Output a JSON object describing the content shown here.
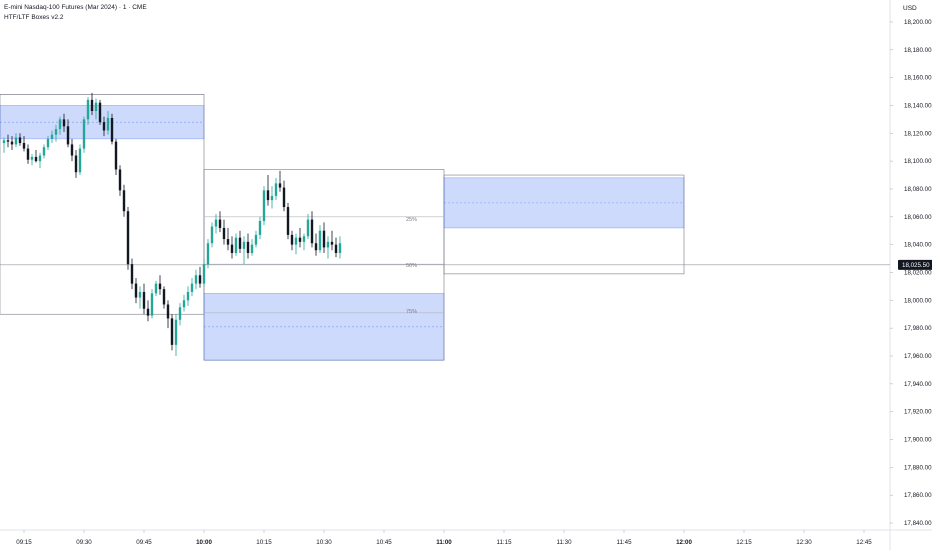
{
  "header": {
    "symbol_title": "E-mini Nasdaq-100 Futures (Mar 2024) · 1 · CME",
    "indicator_name": "HTF/LTF Boxes v2.2"
  },
  "price_axis": {
    "currency": "USD",
    "ticks": [
      "18,200.00",
      "18,180.00",
      "18,160.00",
      "18,140.00",
      "18,120.00",
      "18,100.00",
      "18,080.00",
      "18,060.00",
      "18,040.00",
      "18,020.00",
      "18,000.00",
      "17,980.00",
      "17,960.00",
      "17,940.00",
      "17,920.00",
      "17,900.00",
      "17,880.00",
      "17,860.00",
      "17,840.00"
    ],
    "last_price": "18,025.50"
  },
  "time_axis": {
    "ticks": [
      {
        "label": "09:15",
        "bold": false
      },
      {
        "label": "09:30",
        "bold": false
      },
      {
        "label": "09:45",
        "bold": false
      },
      {
        "label": "10:00",
        "bold": true
      },
      {
        "label": "10:15",
        "bold": false
      },
      {
        "label": "10:30",
        "bold": false
      },
      {
        "label": "10:45",
        "bold": false
      },
      {
        "label": "11:00",
        "bold": true
      },
      {
        "label": "11:15",
        "bold": false
      },
      {
        "label": "11:30",
        "bold": false
      },
      {
        "label": "11:45",
        "bold": false
      },
      {
        "label": "12:00",
        "bold": true
      },
      {
        "label": "12:15",
        "bold": false
      },
      {
        "label": "12:30",
        "bold": false
      },
      {
        "label": "12:45",
        "bold": false
      }
    ]
  },
  "box_labels": {
    "q25": "25%",
    "q50": "50%",
    "q75": "75%"
  },
  "colors": {
    "up": "#26a69a",
    "down": "#131722",
    "box_fill": "#3d6cf5",
    "box_border": "#787b86",
    "axis_text": "#131722"
  },
  "chart_data": {
    "type": "candlestick",
    "instrument": "E-mini Nasdaq-100 Futures (Mar 2024)",
    "interval": "1",
    "ylim": [
      17835,
      18210
    ],
    "x_range": [
      "09:09",
      "12:51"
    ],
    "last_price": 18025.5,
    "candles": [
      {
        "t": "09:10",
        "o": 18113,
        "h": 18117,
        "l": 18106,
        "c": 18115
      },
      {
        "t": "09:11",
        "o": 18115,
        "h": 18119,
        "l": 18110,
        "c": 18114
      },
      {
        "t": "09:12",
        "o": 18114,
        "h": 18118,
        "l": 18108,
        "c": 18112
      },
      {
        "t": "09:13",
        "o": 18112,
        "h": 18120,
        "l": 18110,
        "c": 18117
      },
      {
        "t": "09:14",
        "o": 18117,
        "h": 18120,
        "l": 18111,
        "c": 18113
      },
      {
        "t": "09:15",
        "o": 18113,
        "h": 18118,
        "l": 18107,
        "c": 18109
      },
      {
        "t": "09:16",
        "o": 18109,
        "h": 18112,
        "l": 18098,
        "c": 18101
      },
      {
        "t": "09:17",
        "o": 18101,
        "h": 18105,
        "l": 18097,
        "c": 18103
      },
      {
        "t": "09:18",
        "o": 18103,
        "h": 18108,
        "l": 18099,
        "c": 18100
      },
      {
        "t": "09:19",
        "o": 18100,
        "h": 18106,
        "l": 18095,
        "c": 18104
      },
      {
        "t": "09:20",
        "o": 18104,
        "h": 18112,
        "l": 18102,
        "c": 18110
      },
      {
        "t": "09:21",
        "o": 18110,
        "h": 18118,
        "l": 18108,
        "c": 18116
      },
      {
        "t": "09:22",
        "o": 18116,
        "h": 18122,
        "l": 18113,
        "c": 18119
      },
      {
        "t": "09:23",
        "o": 18119,
        "h": 18126,
        "l": 18114,
        "c": 18123
      },
      {
        "t": "09:24",
        "o": 18123,
        "h": 18132,
        "l": 18119,
        "c": 18130
      },
      {
        "t": "09:25",
        "o": 18130,
        "h": 18134,
        "l": 18121,
        "c": 18125
      },
      {
        "t": "09:26",
        "o": 18125,
        "h": 18130,
        "l": 18110,
        "c": 18112
      },
      {
        "t": "09:27",
        "o": 18112,
        "h": 18116,
        "l": 18100,
        "c": 18104
      },
      {
        "t": "09:28",
        "o": 18104,
        "h": 18108,
        "l": 18088,
        "c": 18092
      },
      {
        "t": "09:29",
        "o": 18092,
        "h": 18112,
        "l": 18090,
        "c": 18109
      },
      {
        "t": "09:30",
        "o": 18109,
        "h": 18132,
        "l": 18106,
        "c": 18130
      },
      {
        "t": "09:31",
        "o": 18130,
        "h": 18146,
        "l": 18126,
        "c": 18144
      },
      {
        "t": "09:32",
        "o": 18144,
        "h": 18149,
        "l": 18133,
        "c": 18136
      },
      {
        "t": "09:33",
        "o": 18136,
        "h": 18145,
        "l": 18130,
        "c": 18142
      },
      {
        "t": "09:34",
        "o": 18142,
        "h": 18144,
        "l": 18126,
        "c": 18128
      },
      {
        "t": "09:35",
        "o": 18128,
        "h": 18132,
        "l": 18118,
        "c": 18122
      },
      {
        "t": "09:36",
        "o": 18122,
        "h": 18136,
        "l": 18119,
        "c": 18131
      },
      {
        "t": "09:37",
        "o": 18131,
        "h": 18134,
        "l": 18112,
        "c": 18114
      },
      {
        "t": "09:38",
        "o": 18114,
        "h": 18116,
        "l": 18090,
        "c": 18094
      },
      {
        "t": "09:39",
        "o": 18094,
        "h": 18097,
        "l": 18075,
        "c": 18079
      },
      {
        "t": "09:40",
        "o": 18079,
        "h": 18083,
        "l": 18060,
        "c": 18064
      },
      {
        "t": "09:41",
        "o": 18064,
        "h": 18067,
        "l": 18022,
        "c": 18026
      },
      {
        "t": "09:42",
        "o": 18026,
        "h": 18030,
        "l": 18008,
        "c": 18012
      },
      {
        "t": "09:43",
        "o": 18012,
        "h": 18016,
        "l": 17998,
        "c": 18002
      },
      {
        "t": "09:44",
        "o": 18002,
        "h": 18010,
        "l": 17994,
        "c": 18006
      },
      {
        "t": "09:45",
        "o": 18006,
        "h": 18012,
        "l": 17990,
        "c": 17994
      },
      {
        "t": "09:46",
        "o": 17994,
        "h": 18000,
        "l": 17985,
        "c": 17989
      },
      {
        "t": "09:47",
        "o": 17989,
        "h": 18008,
        "l": 17987,
        "c": 18005
      },
      {
        "t": "09:48",
        "o": 18005,
        "h": 18014,
        "l": 18003,
        "c": 18012
      },
      {
        "t": "09:49",
        "o": 18012,
        "h": 18018,
        "l": 18004,
        "c": 18008
      },
      {
        "t": "09:50",
        "o": 18008,
        "h": 18010,
        "l": 17994,
        "c": 17997
      },
      {
        "t": "09:51",
        "o": 17997,
        "h": 18000,
        "l": 17980,
        "c": 17987
      },
      {
        "t": "09:52",
        "o": 17987,
        "h": 17990,
        "l": 17964,
        "c": 17968
      },
      {
        "t": "09:53",
        "o": 17968,
        "h": 17990,
        "l": 17960,
        "c": 17986
      },
      {
        "t": "09:54",
        "o": 17986,
        "h": 17998,
        "l": 17982,
        "c": 17995
      },
      {
        "t": "09:55",
        "o": 17995,
        "h": 18004,
        "l": 17992,
        "c": 18000
      },
      {
        "t": "09:56",
        "o": 18000,
        "h": 18010,
        "l": 17996,
        "c": 18006
      },
      {
        "t": "09:57",
        "o": 18006,
        "h": 18016,
        "l": 18003,
        "c": 18012
      },
      {
        "t": "09:58",
        "o": 18012,
        "h": 18022,
        "l": 18008,
        "c": 18018
      },
      {
        "t": "09:59",
        "o": 18018,
        "h": 18024,
        "l": 18009,
        "c": 18012
      },
      {
        "t": "10:00",
        "o": 18012,
        "h": 18030,
        "l": 18010,
        "c": 18026
      },
      {
        "t": "10:01",
        "o": 18026,
        "h": 18044,
        "l": 18023,
        "c": 18041
      },
      {
        "t": "10:02",
        "o": 18041,
        "h": 18056,
        "l": 18038,
        "c": 18053
      },
      {
        "t": "10:03",
        "o": 18053,
        "h": 18062,
        "l": 18048,
        "c": 18058
      },
      {
        "t": "10:04",
        "o": 18058,
        "h": 18064,
        "l": 18049,
        "c": 18052
      },
      {
        "t": "10:05",
        "o": 18052,
        "h": 18058,
        "l": 18040,
        "c": 18044
      },
      {
        "t": "10:06",
        "o": 18044,
        "h": 18052,
        "l": 18036,
        "c": 18040
      },
      {
        "t": "10:07",
        "o": 18040,
        "h": 18046,
        "l": 18030,
        "c": 18034
      },
      {
        "t": "10:08",
        "o": 18034,
        "h": 18048,
        "l": 18032,
        "c": 18045
      },
      {
        "t": "10:09",
        "o": 18045,
        "h": 18050,
        "l": 18034,
        "c": 18037
      },
      {
        "t": "10:10",
        "o": 18037,
        "h": 18046,
        "l": 18026,
        "c": 18042
      },
      {
        "t": "10:11",
        "o": 18042,
        "h": 18048,
        "l": 18030,
        "c": 18034
      },
      {
        "t": "10:12",
        "o": 18034,
        "h": 18044,
        "l": 18032,
        "c": 18040
      },
      {
        "t": "10:13",
        "o": 18040,
        "h": 18050,
        "l": 18038,
        "c": 18047
      },
      {
        "t": "10:14",
        "o": 18047,
        "h": 18060,
        "l": 18044,
        "c": 18057
      },
      {
        "t": "10:15",
        "o": 18057,
        "h": 18082,
        "l": 18054,
        "c": 18079
      },
      {
        "t": "10:16",
        "o": 18079,
        "h": 18090,
        "l": 18068,
        "c": 18072
      },
      {
        "t": "10:17",
        "o": 18072,
        "h": 18082,
        "l": 18066,
        "c": 18075
      },
      {
        "t": "10:18",
        "o": 18075,
        "h": 18088,
        "l": 18072,
        "c": 18084
      },
      {
        "t": "10:19",
        "o": 18084,
        "h": 18093,
        "l": 18078,
        "c": 18081
      },
      {
        "t": "10:20",
        "o": 18081,
        "h": 18086,
        "l": 18064,
        "c": 18067
      },
      {
        "t": "10:21",
        "o": 18067,
        "h": 18070,
        "l": 18044,
        "c": 18047
      },
      {
        "t": "10:22",
        "o": 18047,
        "h": 18050,
        "l": 18036,
        "c": 18040
      },
      {
        "t": "10:23",
        "o": 18040,
        "h": 18048,
        "l": 18033,
        "c": 18045
      },
      {
        "t": "10:24",
        "o": 18045,
        "h": 18052,
        "l": 18038,
        "c": 18042
      },
      {
        "t": "10:25",
        "o": 18042,
        "h": 18048,
        "l": 18036,
        "c": 18046
      },
      {
        "t": "10:26",
        "o": 18046,
        "h": 18062,
        "l": 18044,
        "c": 18058
      },
      {
        "t": "10:27",
        "o": 18058,
        "h": 18064,
        "l": 18038,
        "c": 18041
      },
      {
        "t": "10:28",
        "o": 18041,
        "h": 18048,
        "l": 18032,
        "c": 18036
      },
      {
        "t": "10:29",
        "o": 18036,
        "h": 18054,
        "l": 18034,
        "c": 18050
      },
      {
        "t": "10:30",
        "o": 18050,
        "h": 18056,
        "l": 18034,
        "c": 18038
      },
      {
        "t": "10:31",
        "o": 18038,
        "h": 18046,
        "l": 18030,
        "c": 18042
      },
      {
        "t": "10:32",
        "o": 18042,
        "h": 18050,
        "l": 18036,
        "c": 18040
      },
      {
        "t": "10:33",
        "o": 18040,
        "h": 18045,
        "l": 18031,
        "c": 18034
      },
      {
        "t": "10:34",
        "o": 18034,
        "h": 18046,
        "l": 18030,
        "c": 18041
      }
    ],
    "boxes": [
      {
        "name": "htf-box-0900",
        "x0": "09:09",
        "x1": "10:00",
        "y0": 17990,
        "y1": 18148,
        "fill": false
      },
      {
        "name": "fvg-zone-0900",
        "x0": "09:09",
        "x1": "10:00",
        "y0": 18116,
        "y1": 18140,
        "fill": true
      },
      {
        "name": "htf-box-1000",
        "x0": "10:00",
        "x1": "11:00",
        "y0": 17957,
        "y1": 18094,
        "fill": false
      },
      {
        "name": "fvg-zone-1000",
        "x0": "10:00",
        "x1": "11:00",
        "y0": 17957,
        "y1": 18005,
        "fill": true
      },
      {
        "name": "htf-box-1100",
        "x0": "11:00",
        "x1": "12:00",
        "y0": 18019,
        "y1": 18090,
        "fill": false
      },
      {
        "name": "fvg-zone-1100",
        "x0": "11:00",
        "x1": "12:00",
        "y0": 18052,
        "y1": 18088,
        "fill": true
      }
    ],
    "levels": [
      {
        "label": "25%",
        "value": 18060
      },
      {
        "label": "50%",
        "value": 18026
      },
      {
        "label": "75%",
        "value": 17991
      }
    ]
  }
}
